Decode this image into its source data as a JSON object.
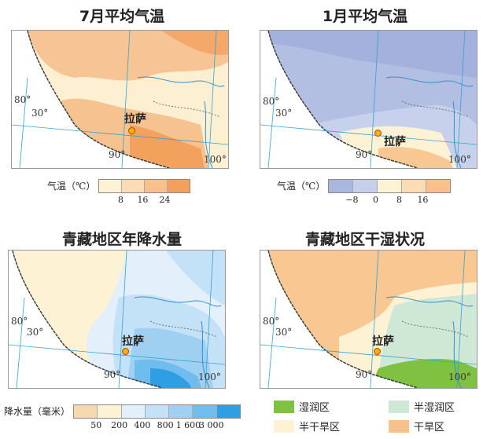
{
  "panels": [
    {
      "title": "7月平均气温",
      "legend_title": "气温（℃）",
      "legend_colors": [
        "#fdf3d4",
        "#fbdcb4",
        "#f7c08d",
        "#f3a05c"
      ],
      "legend_ticks": [
        "8",
        "16",
        "24"
      ]
    },
    {
      "title": "1月平均气温",
      "legend_title": "气温（℃）",
      "legend_colors": [
        "#a9b7df",
        "#c6d0ea",
        "#fdf3d4",
        "#fbdcb4",
        "#f7c08d"
      ],
      "legend_ticks": [
        "−8",
        "0",
        "8",
        "16"
      ]
    },
    {
      "title": "青藏地区年降水量",
      "legend_title": "降水量（毫米）",
      "legend_colors": [
        "#f5d7b0",
        "#fdf3d4",
        "#e3f0fb",
        "#c4e2f7",
        "#9fd0f2",
        "#6fbdee",
        "#2f9fe3"
      ],
      "legend_ticks": [
        "50",
        "200",
        "400",
        "800",
        "1 600",
        "3 000"
      ]
    },
    {
      "title": "青藏地区干湿状况",
      "classes": [
        {
          "label": "湿润区",
          "color": "#7fc241"
        },
        {
          "label": "半湿润区",
          "color": "#cfe8d6"
        },
        {
          "label": "半干旱区",
          "color": "#fdf3d4"
        },
        {
          "label": "干旱区",
          "color": "#f7c08d"
        }
      ]
    }
  ],
  "map_labels": {
    "lon80": "80°",
    "lat30": "30°",
    "lon90": "90°",
    "lon100": "100°",
    "city": "拉萨"
  }
}
